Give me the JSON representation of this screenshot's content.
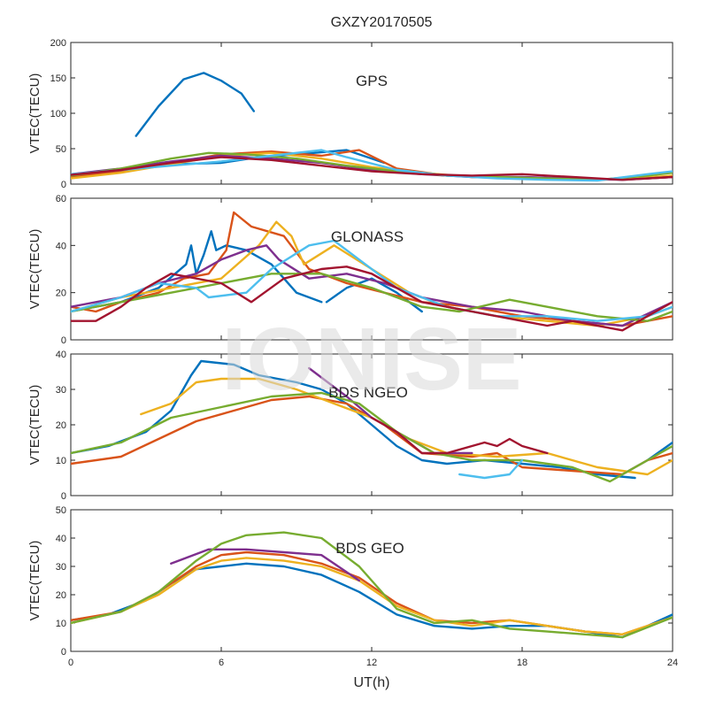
{
  "figure": {
    "title": "GXZY20170505",
    "xlabel": "UT(h)",
    "watermark": "IONISE",
    "xlim": [
      0,
      24
    ],
    "xticks": [
      "0",
      "6",
      "12",
      "18",
      "24"
    ],
    "colors": [
      "#0072BD",
      "#D95319",
      "#EDB120",
      "#7E2F8E",
      "#77AC30",
      "#4DBEEE",
      "#A2142F"
    ]
  },
  "chart_data": [
    {
      "type": "line",
      "label": "GPS",
      "ylabel": "VTEC(TECU)",
      "ylim": [
        0,
        200
      ],
      "yticks": [
        "0",
        "50",
        "100",
        "150",
        "200"
      ],
      "series": [
        {
          "color": "#0072BD",
          "x": [
            2.6,
            3.5,
            4.5,
            5.3,
            6.0,
            6.8,
            7.3
          ],
          "y": [
            68,
            110,
            148,
            157,
            146,
            128,
            103
          ]
        },
        {
          "color": "#0072BD",
          "x": [
            0,
            2,
            4,
            6,
            7.5,
            9,
            11,
            12.5
          ],
          "y": [
            12,
            20,
            28,
            30,
            38,
            42,
            48,
            30
          ]
        },
        {
          "color": "#D95319",
          "x": [
            0,
            2,
            4,
            6,
            8,
            10,
            11.5,
            13,
            15,
            17,
            19,
            21,
            23,
            24
          ],
          "y": [
            10,
            18,
            30,
            42,
            46,
            40,
            48,
            22,
            12,
            10,
            8,
            6,
            8,
            10
          ]
        },
        {
          "color": "#EDB120",
          "x": [
            0,
            2,
            4,
            6,
            8,
            10,
            12,
            14,
            16,
            18,
            20,
            22,
            24
          ],
          "y": [
            8,
            16,
            28,
            40,
            44,
            36,
            24,
            16,
            10,
            8,
            6,
            7,
            12
          ]
        },
        {
          "color": "#7E2F8E",
          "x": [
            0,
            2,
            4,
            6,
            8,
            10,
            12,
            14,
            16,
            18,
            20,
            22,
            24
          ],
          "y": [
            14,
            22,
            32,
            40,
            36,
            30,
            20,
            14,
            10,
            10,
            8,
            6,
            10
          ]
        },
        {
          "color": "#77AC30",
          "x": [
            0,
            2,
            4,
            5.5,
            7,
            9,
            11,
            13,
            15,
            17,
            19,
            21,
            23,
            24
          ],
          "y": [
            12,
            22,
            36,
            44,
            42,
            36,
            26,
            18,
            12,
            10,
            8,
            6,
            12,
            16
          ]
        },
        {
          "color": "#4DBEEE",
          "x": [
            0,
            2,
            4,
            6,
            8,
            10,
            11,
            13,
            15,
            17,
            19,
            21,
            23,
            24
          ],
          "y": [
            14,
            20,
            26,
            32,
            40,
            48,
            38,
            20,
            12,
            8,
            6,
            5,
            14,
            18
          ]
        },
        {
          "color": "#A2142F",
          "x": [
            0,
            2,
            4,
            6,
            8,
            10,
            12,
            14,
            16,
            18,
            20,
            22,
            24
          ],
          "y": [
            13,
            20,
            30,
            38,
            34,
            26,
            18,
            14,
            12,
            14,
            10,
            6,
            10
          ]
        }
      ]
    },
    {
      "type": "line",
      "label": "GLONASS",
      "ylabel": "VTEC(TECU)",
      "ylim": [
        0,
        60
      ],
      "yticks": [
        "0",
        "20",
        "40",
        "60"
      ],
      "series": [
        {
          "color": "#0072BD",
          "x": [
            0,
            2,
            3.5,
            4.6,
            4.8,
            5.0,
            5.3,
            5.6,
            5.8,
            6.2,
            7.0,
            8.0,
            9.0,
            10.0
          ],
          "y": [
            12,
            16,
            22,
            32,
            40,
            28,
            36,
            46,
            38,
            40,
            38,
            32,
            20,
            16
          ]
        },
        {
          "color": "#0072BD",
          "x": [
            10.2,
            11,
            12,
            13,
            14
          ],
          "y": [
            16,
            22,
            26,
            20,
            12
          ]
        },
        {
          "color": "#D95319",
          "x": [
            0,
            1,
            2,
            3.5,
            4.5,
            5.5,
            6.2,
            6.5,
            7.2,
            8.5,
            9.5,
            11,
            12.5,
            14,
            16,
            18,
            20,
            22,
            24
          ],
          "y": [
            14,
            12,
            16,
            20,
            26,
            28,
            38,
            54,
            48,
            44,
            30,
            24,
            20,
            16,
            14,
            10,
            8,
            6,
            10
          ]
        },
        {
          "color": "#EDB120",
          "x": [
            0,
            2,
            4,
            6,
            7.5,
            8.2,
            8.8,
            9.3,
            10.5,
            12,
            13.5,
            15,
            17,
            19,
            21,
            23,
            24
          ],
          "y": [
            12,
            18,
            22,
            26,
            40,
            50,
            44,
            32,
            40,
            30,
            20,
            14,
            10,
            8,
            6,
            10,
            14
          ]
        },
        {
          "color": "#7E2F8E",
          "x": [
            0,
            2,
            3.5,
            5,
            6,
            7,
            7.8,
            8.3,
            9.5,
            11,
            12.5,
            14,
            16,
            18,
            20,
            22,
            24
          ],
          "y": [
            14,
            18,
            24,
            28,
            34,
            38,
            40,
            34,
            26,
            28,
            24,
            18,
            14,
            12,
            8,
            6,
            16
          ]
        },
        {
          "color": "#77AC30",
          "x": [
            0,
            2,
            4,
            6,
            8,
            10,
            12,
            14,
            15.5,
            17.5,
            19,
            21,
            23,
            24
          ],
          "y": [
            12,
            16,
            20,
            24,
            28,
            28,
            22,
            14,
            12,
            17,
            14,
            10,
            8,
            12
          ]
        },
        {
          "color": "#4DBEEE",
          "x": [
            0,
            2,
            3.5,
            5,
            5.5,
            7,
            8,
            9.5,
            10.5,
            11.5,
            13,
            15,
            17,
            19,
            21,
            23,
            24
          ],
          "y": [
            12,
            18,
            24,
            22,
            18,
            20,
            30,
            40,
            42,
            34,
            22,
            14,
            10,
            10,
            8,
            10,
            14
          ]
        },
        {
          "color": "#A2142F",
          "x": [
            0,
            1,
            2,
            3,
            4,
            6,
            7.2,
            8.5,
            10,
            11,
            12,
            13,
            14,
            16,
            18,
            19,
            20,
            22,
            24
          ],
          "y": [
            8,
            8,
            14,
            22,
            28,
            24,
            16,
            26,
            30,
            31,
            28,
            22,
            16,
            12,
            8,
            6,
            8,
            4,
            16
          ]
        }
      ]
    },
    {
      "type": "line",
      "label": "BDS NGEO",
      "ylabel": "VTEC(TECU)",
      "ylim": [
        0,
        40
      ],
      "yticks": [
        "0",
        "10",
        "20",
        "30",
        "40"
      ],
      "series": [
        {
          "color": "#0072BD",
          "x": [
            0,
            1.5,
            3,
            4,
            4.8,
            5.2,
            6.5,
            7.5,
            9,
            10,
            11,
            12,
            13,
            14,
            15,
            16.5,
            18,
            19.5,
            21,
            22.5
          ],
          "y": [
            12,
            14,
            18,
            24,
            34,
            38,
            37,
            34,
            32,
            30,
            26,
            20,
            14,
            10,
            9,
            10,
            9,
            8,
            6,
            5
          ]
        },
        {
          "color": "#0072BD",
          "x": [
            22,
            23,
            24
          ],
          "y": [
            6,
            10,
            15
          ]
        },
        {
          "color": "#D95319",
          "x": [
            0,
            2,
            3.5,
            5,
            6.5,
            8,
            9.5,
            11,
            12.5,
            14,
            16,
            17,
            18,
            20,
            22,
            23,
            24
          ],
          "y": [
            9,
            11,
            16,
            21,
            24,
            27,
            28,
            26,
            20,
            12,
            11,
            12,
            8,
            7,
            6,
            10,
            12
          ]
        },
        {
          "color": "#EDB120",
          "x": [
            2.8,
            4,
            5,
            6,
            7.5,
            9,
            10.5,
            12,
            13.5,
            15,
            17,
            19,
            21,
            23,
            24
          ],
          "y": [
            23,
            26,
            32,
            33,
            33,
            30,
            26,
            22,
            16,
            12,
            11,
            12,
            8,
            6,
            10
          ]
        },
        {
          "color": "#7E2F8E",
          "x": [
            9.5,
            11,
            12,
            13,
            14.5,
            16
          ],
          "y": [
            36,
            28,
            22,
            18,
            12,
            12
          ]
        },
        {
          "color": "#77AC30",
          "x": [
            0,
            2,
            4,
            6,
            8,
            10,
            11.5,
            13,
            14.5,
            16,
            18,
            20,
            21.5,
            23,
            24
          ],
          "y": [
            12,
            15,
            22,
            25,
            28,
            29,
            26,
            18,
            12,
            10,
            10,
            8,
            4,
            10,
            14
          ]
        },
        {
          "color": "#4DBEEE",
          "x": [
            15.5,
            16.5,
            17.5,
            18
          ],
          "y": [
            6,
            5,
            6,
            10
          ]
        },
        {
          "color": "#A2142F",
          "x": [
            12,
            13,
            14,
            15,
            16,
            16.5,
            17,
            17.5,
            18,
            19
          ],
          "y": [
            22,
            18,
            12,
            12,
            14,
            15,
            14,
            16,
            14,
            12
          ]
        }
      ]
    },
    {
      "type": "line",
      "label": "BDS GEO",
      "ylabel": "VTEC(TECU)",
      "ylim": [
        0,
        50
      ],
      "yticks": [
        "0",
        "10",
        "20",
        "30",
        "40",
        "50"
      ],
      "series": [
        {
          "color": "#0072BD",
          "x": [
            0,
            1.5,
            3,
            4,
            5,
            6,
            7,
            8.5,
            10,
            11.5,
            13,
            14.5,
            16,
            17.5,
            19,
            20.5,
            22,
            23,
            24
          ],
          "y": [
            11,
            13,
            18,
            24,
            29,
            30,
            31,
            30,
            27,
            21,
            13,
            9,
            8,
            9,
            9,
            7,
            5,
            9,
            13
          ]
        },
        {
          "color": "#D95319",
          "x": [
            0,
            2,
            3.5,
            5,
            6,
            7,
            8.5,
            10,
            11.5,
            13,
            14.5,
            16,
            17.5,
            19,
            20.5,
            22,
            24
          ],
          "y": [
            11,
            14,
            21,
            30,
            34,
            35,
            34,
            31,
            26,
            17,
            11,
            10,
            11,
            9,
            7,
            6,
            12
          ]
        },
        {
          "color": "#EDB120",
          "x": [
            0,
            2,
            3.5,
            5,
            6,
            7,
            8.5,
            10,
            11.5,
            13,
            14.5,
            16,
            17.5,
            19,
            20.5,
            22,
            24
          ],
          "y": [
            10,
            14,
            20,
            29,
            32,
            33,
            32,
            30,
            25,
            16,
            11,
            9,
            11,
            9,
            7,
            6,
            12
          ]
        },
        {
          "color": "#7E2F8E",
          "x": [
            4,
            5.5,
            7,
            8.5,
            10,
            11.5
          ],
          "y": [
            31,
            36,
            36,
            35,
            34,
            25
          ]
        },
        {
          "color": "#77AC30",
          "x": [
            0,
            2,
            3.5,
            5,
            6,
            7,
            8.5,
            10,
            11.5,
            13,
            14.5,
            16,
            17.5,
            19,
            20.5,
            22,
            24
          ],
          "y": [
            10,
            14,
            21,
            32,
            38,
            41,
            42,
            40,
            30,
            15,
            10,
            11,
            8,
            7,
            6,
            5,
            12
          ]
        }
      ]
    }
  ]
}
